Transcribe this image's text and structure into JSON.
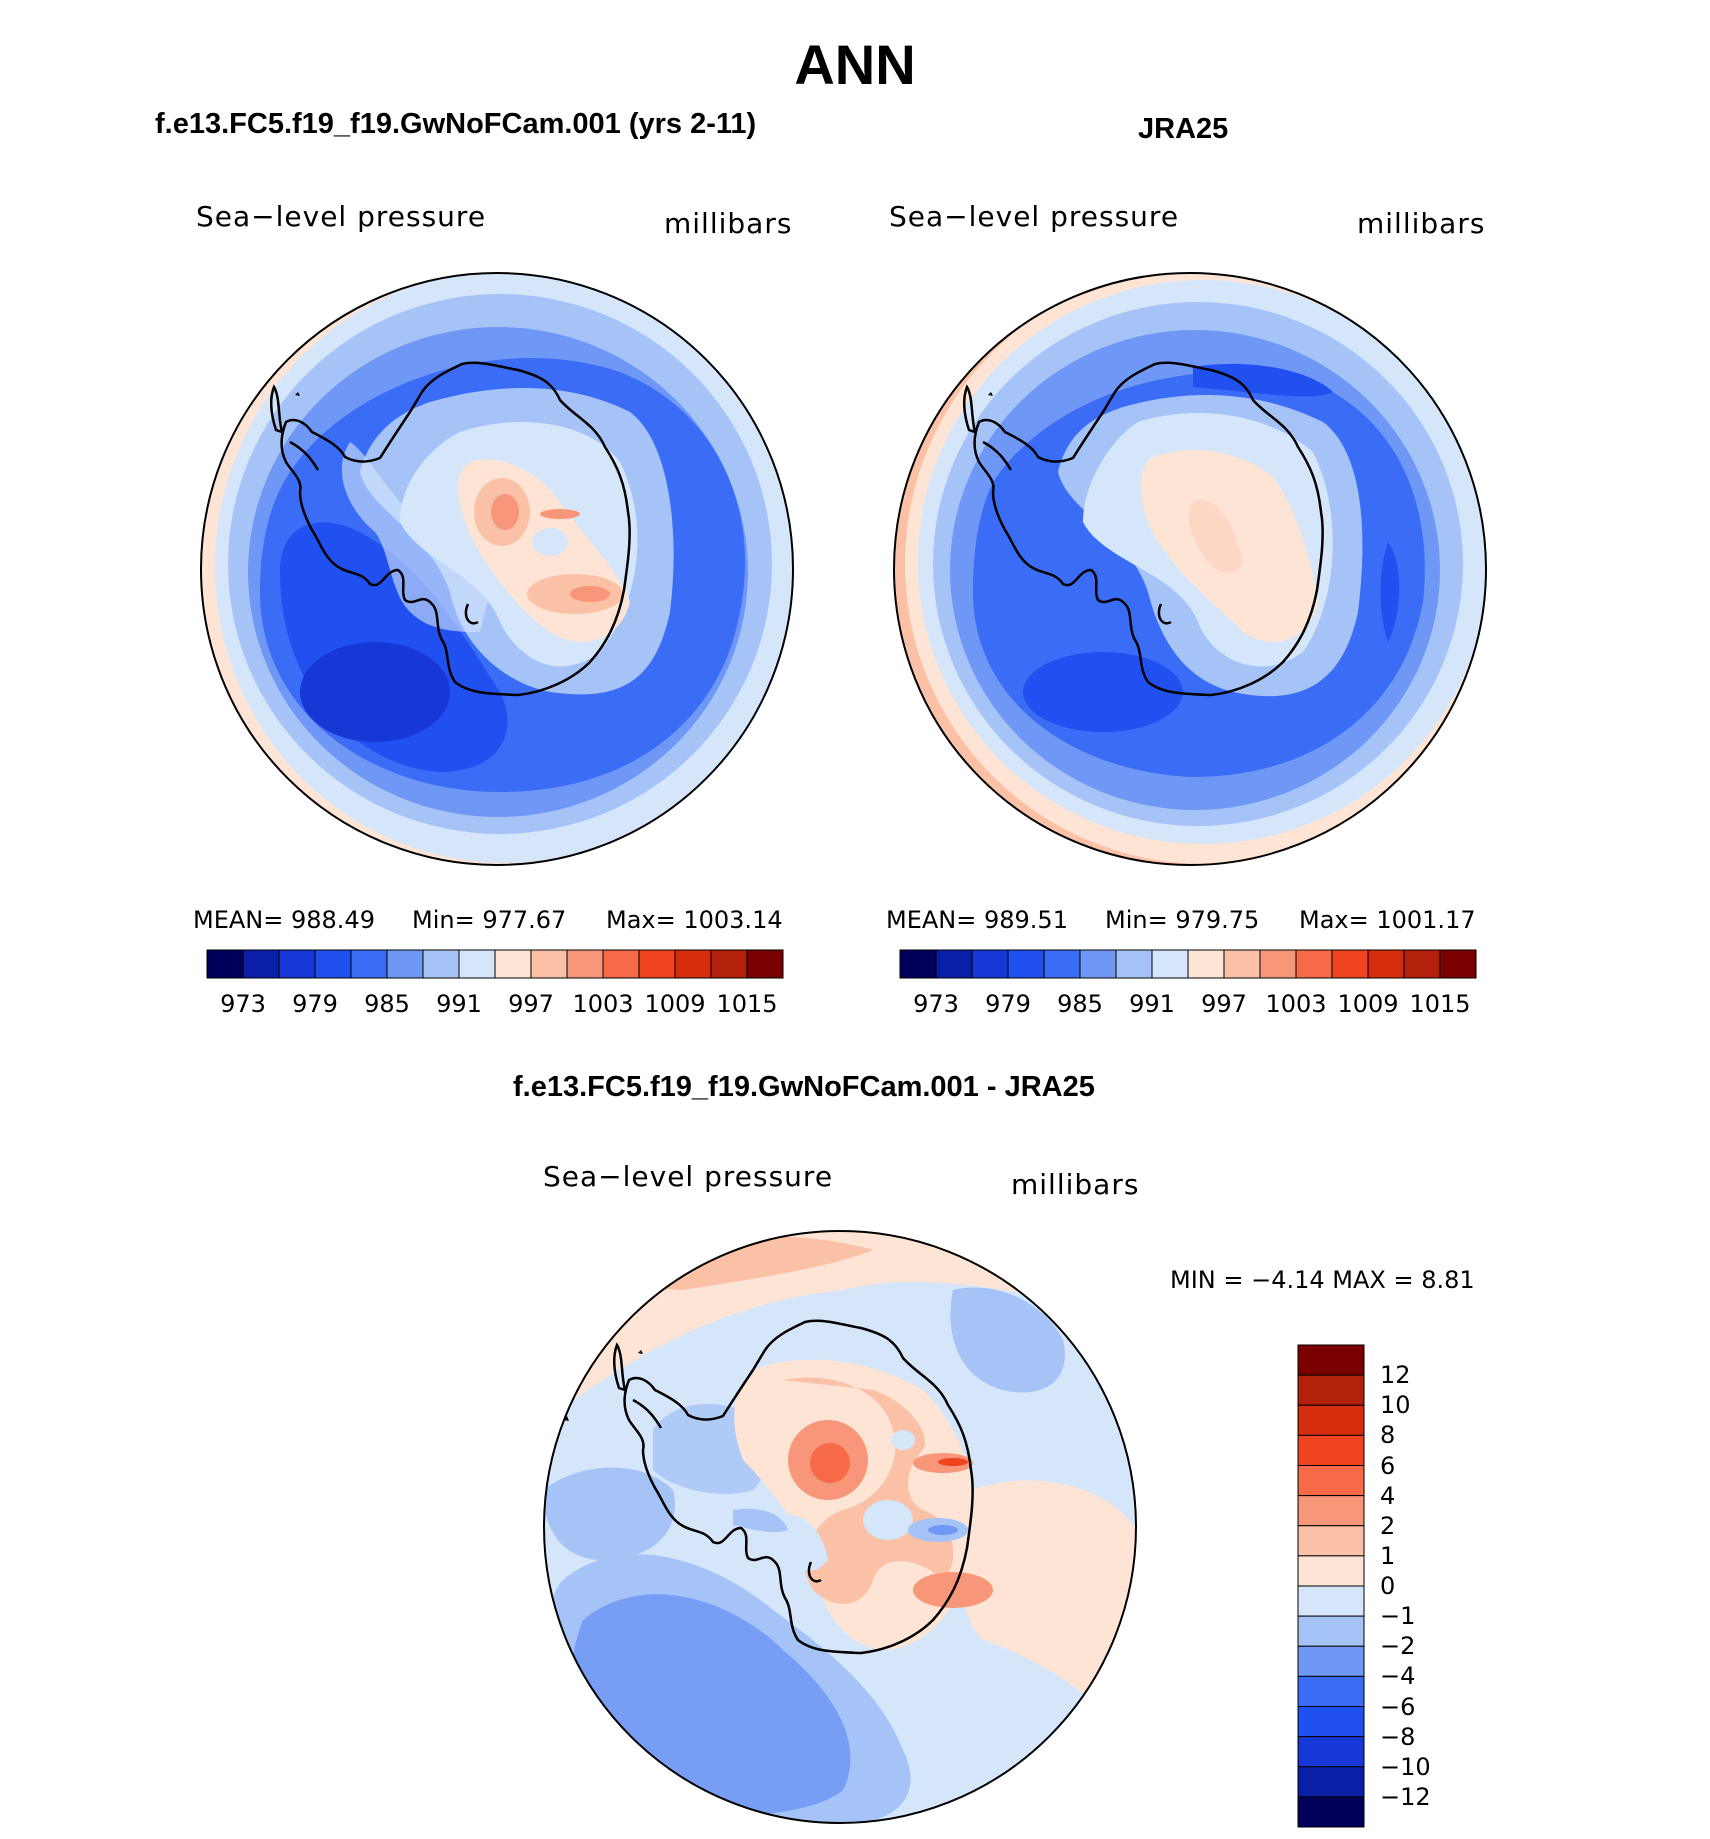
{
  "title": "ANN",
  "panel_left": {
    "header": "f.e13.FC5.f19_f19.GwNoFCam.001 (yrs 2-11)",
    "variable": "Sea−level pressure",
    "units": "millibars",
    "stats": {
      "mean": "MEAN=  988.49",
      "min": "Min=  977.67",
      "max": "Max=  1003.14"
    }
  },
  "panel_right": {
    "header": "JRA25",
    "variable": "Sea−level pressure",
    "units": "millibars",
    "stats": {
      "mean": "MEAN=  989.51",
      "min": "Min=  979.75",
      "max": "Max=  1001.17"
    }
  },
  "panel_diff": {
    "header": "f.e13.FC5.f19_f19.GwNoFCam.001 - JRA25",
    "variable": "Sea−level pressure",
    "units": "millibars",
    "minmax": "MIN =   −4.14  MAX =     8.81"
  },
  "colorbar_horizontal": {
    "colors": [
      "#00005a",
      "#0a1fa8",
      "#1737d6",
      "#2150f0",
      "#3a6cf5",
      "#6f97f5",
      "#a6c3f8",
      "#d5e6fb",
      "#fde4d4",
      "#fbc1a6",
      "#f8967a",
      "#f66a47",
      "#f04421",
      "#d52d0e",
      "#b3200c",
      "#7a0000"
    ],
    "labels": [
      "973",
      "979",
      "985",
      "991",
      "997",
      "1003",
      "1009",
      "1015"
    ]
  },
  "colorbar_vertical": {
    "colors": [
      "#7a0000",
      "#b3200c",
      "#d52d0e",
      "#f04421",
      "#f66a47",
      "#f8967a",
      "#fbc1a6",
      "#fde4d4",
      "#d5e6fb",
      "#a6c3f8",
      "#6f97f5",
      "#3a6cf5",
      "#2150f0",
      "#1737d6",
      "#0a1fa8",
      "#00005a"
    ],
    "labels": [
      "12",
      "10",
      "8",
      "6",
      "4",
      "2",
      "1",
      "0",
      "−1",
      "−2",
      "−4",
      "−6",
      "−8",
      "−10",
      "−12"
    ]
  }
}
